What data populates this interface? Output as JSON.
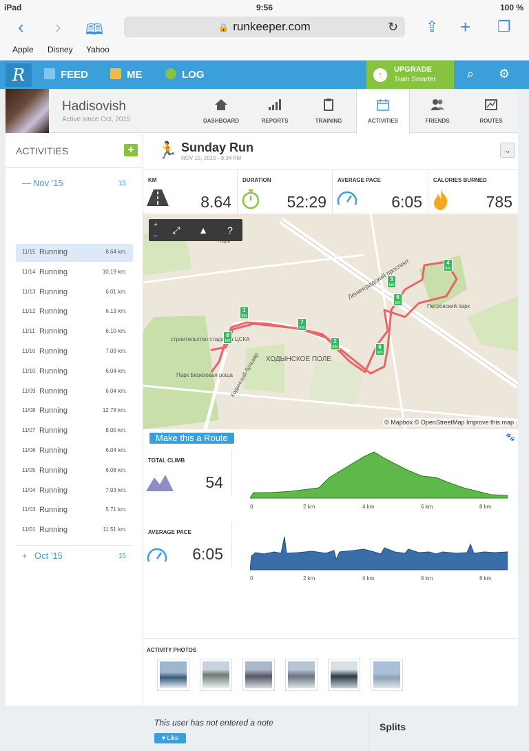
{
  "status": {
    "device": "iPad",
    "time": "9:56",
    "battery": "100 %"
  },
  "browser": {
    "url": "runkeeper.com",
    "bookmarks": [
      "Apple",
      "Disney",
      "Yahoo"
    ]
  },
  "topnav": {
    "items": [
      "FEED",
      "ME",
      "LOG"
    ],
    "upgrade_title": "UPGRADE",
    "upgrade_sub": "Train Smarter"
  },
  "profile": {
    "name": "Hadisovish",
    "since": "Active since Oct, 2015",
    "tabs": [
      "DASHBOARD",
      "REPORTS",
      "TRAINING",
      "ACTIVITIES",
      "FRIENDS",
      "ROUTES"
    ]
  },
  "sidebar": {
    "heading": "ACTIVITIES",
    "add_label": "+",
    "months": [
      {
        "label": "Nov '15",
        "count": "15",
        "toggle": "—"
      },
      {
        "label": "Oct '15",
        "count": "15",
        "toggle": "+"
      }
    ],
    "activities": [
      {
        "date": "11/15",
        "type": "Running",
        "km": "8.64 km."
      },
      {
        "date": "11/14",
        "type": "Running",
        "km": "10.19 km."
      },
      {
        "date": "11/13",
        "type": "Running",
        "km": "6.01 km."
      },
      {
        "date": "11/12",
        "type": "Running",
        "km": "6.13 km."
      },
      {
        "date": "11/11",
        "type": "Running",
        "km": "6.10 km."
      },
      {
        "date": "11/10",
        "type": "Running",
        "km": "7.09 km."
      },
      {
        "date": "11/10",
        "type": "Running",
        "km": "6.04 km."
      },
      {
        "date": "11/09",
        "type": "Running",
        "km": "6.04 km."
      },
      {
        "date": "11/08",
        "type": "Running",
        "km": "12.78 km."
      },
      {
        "date": "11/07",
        "type": "Running",
        "km": "8.00 km."
      },
      {
        "date": "11/06",
        "type": "Running",
        "km": "6.04 km."
      },
      {
        "date": "11/05",
        "type": "Running",
        "km": "6.08 km."
      },
      {
        "date": "11/04",
        "type": "Running",
        "km": "7.03 km."
      },
      {
        "date": "11/03",
        "type": "Running",
        "km": "5.71 km."
      },
      {
        "date": "11/01",
        "type": "Running",
        "km": "11.51 km."
      }
    ]
  },
  "activity": {
    "title": "Sunday Run",
    "date": "NOV 15, 2015  -  8:34 AM",
    "stats": [
      {
        "label": "KM",
        "value": "8.64",
        "icon": "road-icon"
      },
      {
        "label": "DURATION",
        "value": "52:29",
        "icon": "stopwatch-icon"
      },
      {
        "label": "AVERAGE PACE",
        "value": "6:05",
        "icon": "gauge-icon"
      },
      {
        "label": "CALORIES BURNED",
        "value": "785",
        "icon": "flame-icon"
      }
    ],
    "map": {
      "controls": [
        "+",
        "−",
        "⤢",
        "▲",
        "?"
      ],
      "attribution": "© Mapbox © OpenStreetMap Improve this map",
      "labels": [
        "Ленинградский проспект",
        "ХОДЫНСКОЕ ПОЛЕ",
        "строительство стадиона ЦСКА",
        "Парк Березовая роща",
        "Ходынский бульвар",
        "Петровский парк",
        "Парк"
      ],
      "km_markers": [
        "1",
        "2",
        "3",
        "4",
        "5",
        "6",
        "7",
        "8"
      ],
      "marker_unit": "km"
    },
    "make_route": "Make this a Route",
    "graphs": [
      {
        "label": "TOTAL CLIMB",
        "value": "54",
        "axis": [
          "0",
          "2 km",
          "4 km",
          "6 km",
          "8 km"
        ]
      },
      {
        "label": "AVERAGE PACE",
        "value": "6:05",
        "axis": [
          "0",
          "2 km",
          "4 km",
          "6 km",
          "8 km"
        ]
      }
    ],
    "photos_heading": "ACTIVITY PHOTOS",
    "note": "This user has not entered a note",
    "like": "Like",
    "splits": "Splits"
  },
  "colors": {
    "brand": "#3b9fd9",
    "upgrade": "#86c440",
    "route": "#e03a3a",
    "elevation": "#5fb84a",
    "pace": "#3a6ea8"
  }
}
